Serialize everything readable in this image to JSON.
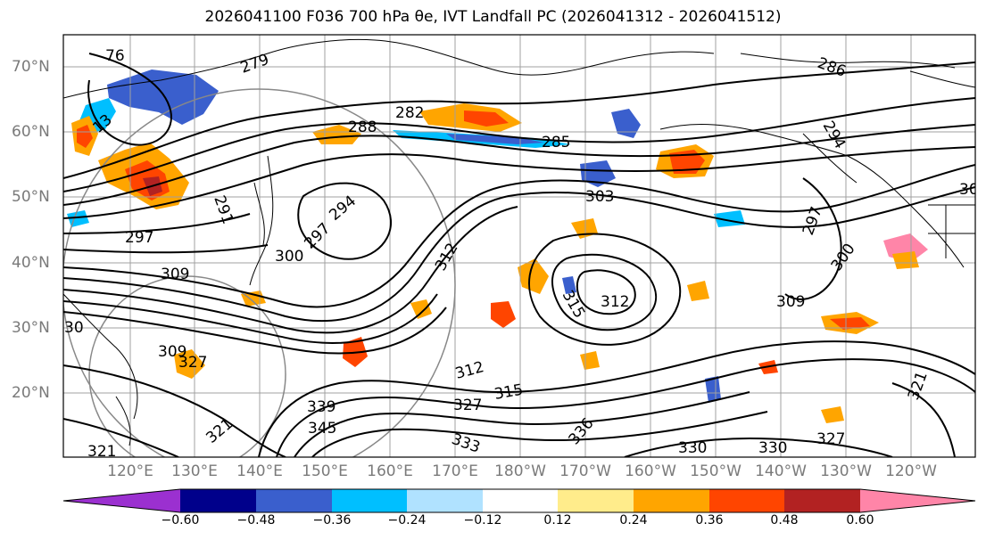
{
  "title": "2026041100 F036 700 hPa θe, IVT Landfall PC (2026041312 - 2026041512)",
  "lat_labels": [
    "70°N",
    "60°N",
    "50°N",
    "40°N",
    "30°N",
    "20°N"
  ],
  "lon_labels": [
    "120°E",
    "130°E",
    "140°E",
    "150°E",
    "160°E",
    "170°E",
    "180°W",
    "170°W",
    "160°W",
    "150°W",
    "140°W",
    "130°W",
    "120°W"
  ],
  "colorbar": {
    "colors": [
      "#9b30d0",
      "#00008b",
      "#3a5fcd",
      "#00bfff",
      "#b0e2ff",
      "#ffffff",
      "#ffec8b",
      "#ffa500",
      "#ff4500",
      "#b22222",
      "#ff85a8"
    ],
    "tick_labels": [
      "−0.60",
      "−0.48",
      "−0.36",
      "−0.24",
      "−0.12",
      "0.12",
      "0.24",
      "0.36",
      "0.48",
      "0.60"
    ]
  },
  "contour_labels": [
    "76",
    "279",
    "13",
    "282",
    "288",
    "285",
    "291",
    "294",
    "297",
    "300",
    "297",
    "303",
    "309",
    "312",
    "315",
    "312",
    "300",
    "297",
    "309",
    "321",
    "327",
    "315",
    "312",
    "327",
    "336",
    "339",
    "345",
    "333",
    "330",
    "330",
    "327",
    "321",
    "30",
    "294",
    "286",
    "30",
    "321",
    "309"
  ]
}
